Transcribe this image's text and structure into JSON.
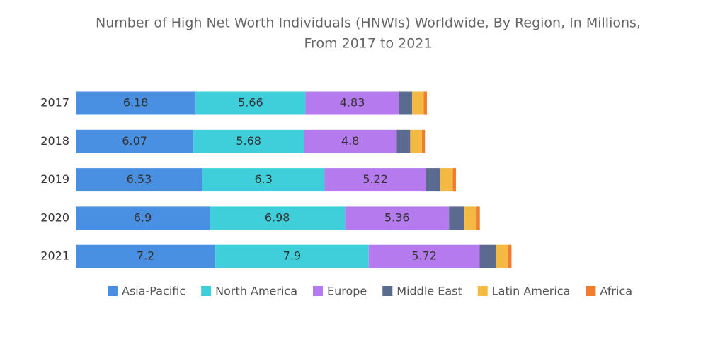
{
  "chart_data": {
    "type": "stacked-barh",
    "title": [
      "Number of High Net Worth Individuals (HNWIs) Worldwide, By Region, In Millions,",
      "From 2017 to 2021"
    ],
    "categories": [
      "2017",
      "2018",
      "2019",
      "2020",
      "2021"
    ],
    "series": [
      {
        "name": "Asia-Pacific",
        "color": "#4a90e2",
        "values": [
          6.18,
          6.07,
          6.53,
          6.9,
          7.2
        ],
        "labels": true
      },
      {
        "name": "North America",
        "color": "#3ecfda",
        "values": [
          5.66,
          5.68,
          6.3,
          6.98,
          7.9
        ],
        "labels": true
      },
      {
        "name": "Europe",
        "color": "#b57bee",
        "values": [
          4.83,
          4.8,
          5.22,
          5.36,
          5.72
        ],
        "labels": true
      },
      {
        "name": "Middle East",
        "color": "#5a6b8f",
        "values": [
          0.67,
          0.69,
          0.73,
          0.8,
          0.84
        ],
        "labels": false
      },
      {
        "name": "Latin America",
        "color": "#f4b942",
        "values": [
          0.6,
          0.6,
          0.65,
          0.62,
          0.62
        ],
        "labels": false
      },
      {
        "name": "Africa",
        "color": "#f07c2e",
        "values": [
          0.16,
          0.16,
          0.17,
          0.17,
          0.18
        ],
        "labels": false
      }
    ]
  }
}
